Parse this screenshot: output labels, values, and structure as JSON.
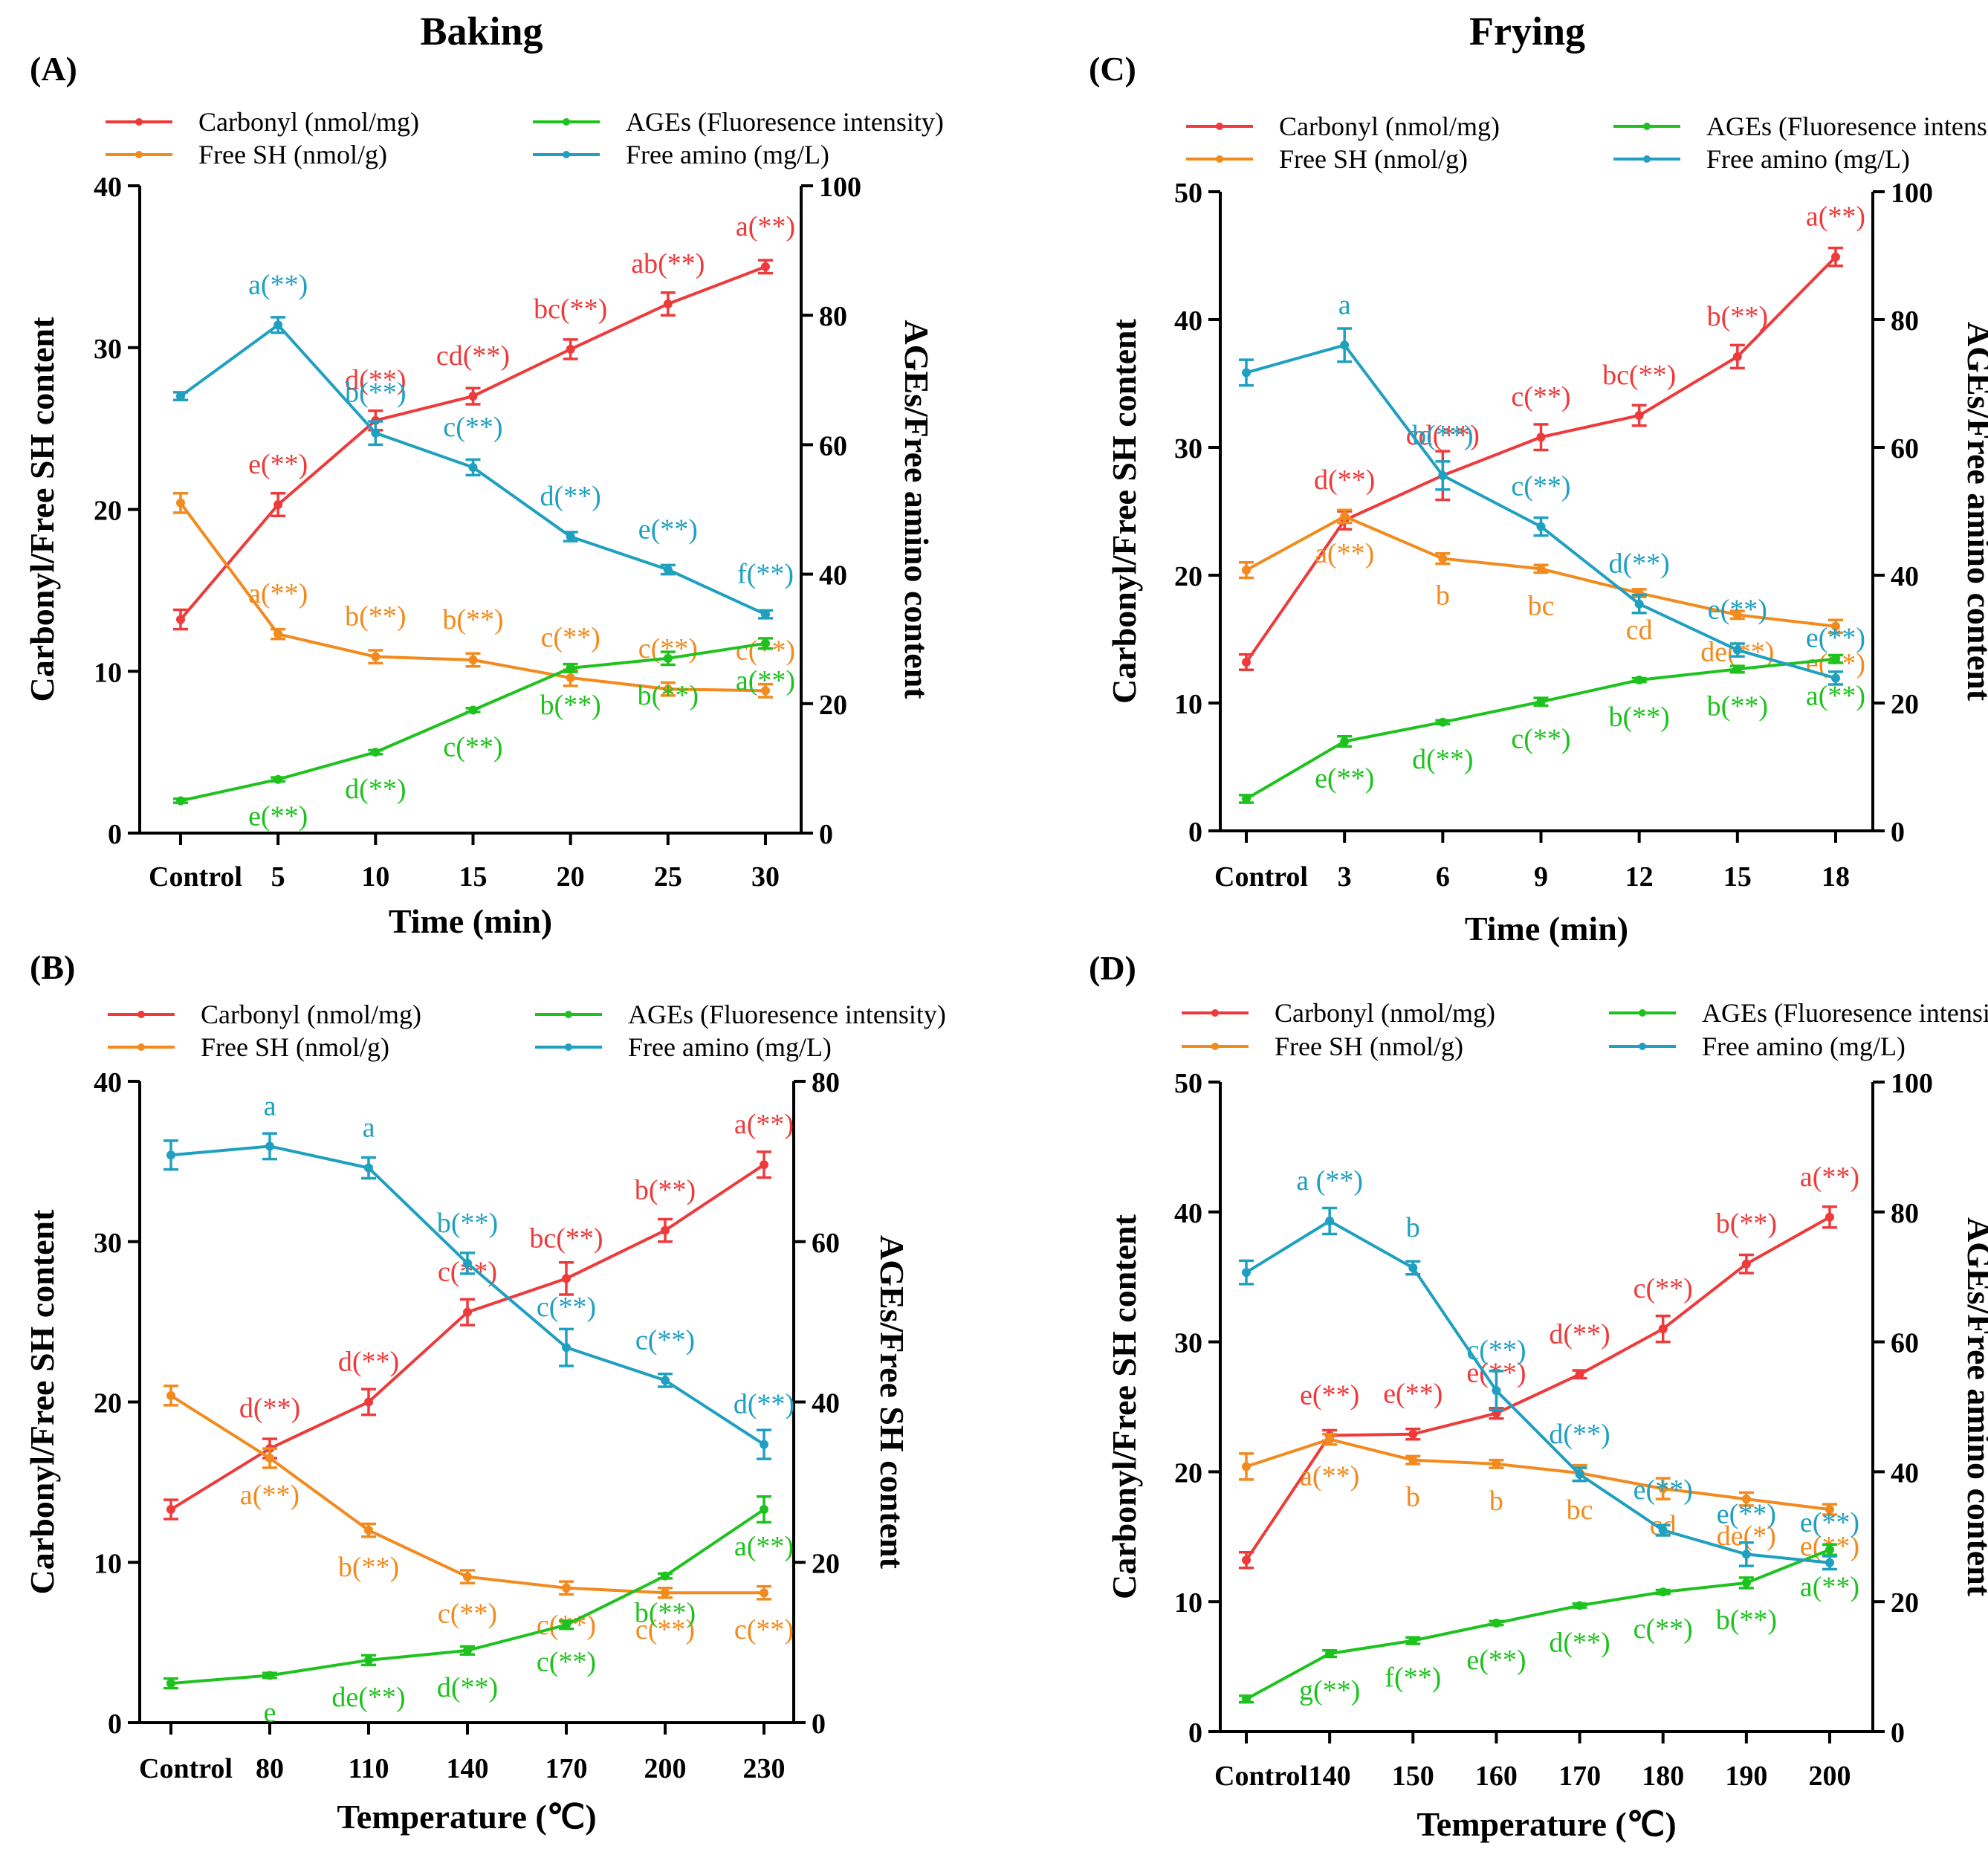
{
  "headers": {
    "left": "Baking",
    "right": "Frying"
  },
  "colors": {
    "carbonyl": "#ee3a3a",
    "free_sh": "#f28a1e",
    "ages": "#1ec21e",
    "free_amino": "#1fa0c0"
  },
  "chart_data": [
    {
      "id": "A",
      "panel_label": "(A)",
      "type": "line",
      "legend": [
        "Carbonyl (nmol/mg)",
        "Free SH (nmol/g)",
        "AGEs (Fluoresence intensity)",
        "Free amino (mg/L)"
      ],
      "categories": [
        "Control",
        "5",
        "10",
        "15",
        "20",
        "25",
        "30"
      ],
      "xlabel": "Time (min)",
      "ylabel_left": "Carbonyl/Free SH content",
      "ylabel_right": "AGEs/Free amino content",
      "left_axis": {
        "min": 0,
        "max": 40,
        "ticks": [
          "0",
          "10",
          "20",
          "30",
          "40"
        ]
      },
      "right_axis": {
        "min": 0,
        "max": 100,
        "ticks": [
          "0",
          "20",
          "40",
          "60",
          "80",
          "100"
        ]
      },
      "series": [
        {
          "name": "Carbonyl (nmol/mg)",
          "axis": "left",
          "color_key": "carbonyl",
          "values": [
            13.2,
            20.3,
            25.5,
            27.0,
            29.9,
            32.7,
            35.0
          ],
          "errors": [
            0.6,
            0.7,
            0.6,
            0.5,
            0.6,
            0.7,
            0.4
          ],
          "labels": [
            "",
            "e(**)",
            "d(**)",
            "cd(**)",
            "bc(**)",
            "ab(**)",
            "a(**)"
          ]
        },
        {
          "name": "Free SH (nmol/g)",
          "axis": "left",
          "color_key": "free_sh",
          "values": [
            20.4,
            12.3,
            10.9,
            10.7,
            9.6,
            8.9,
            8.8
          ],
          "errors": [
            0.6,
            0.3,
            0.4,
            0.4,
            0.5,
            0.4,
            0.4
          ],
          "labels": [
            "",
            "a(**)",
            "b(**)",
            "b(**)",
            "c(**)",
            "c(**)",
            "c(**)"
          ]
        },
        {
          "name": "AGEs (Fluoresence intensity)",
          "axis": "right",
          "color_key": "ages",
          "values": [
            5.0,
            8.3,
            12.5,
            19.0,
            25.5,
            27.0,
            29.3
          ],
          "errors": [
            0.3,
            0.3,
            0.3,
            0.3,
            0.6,
            1.0,
            0.8
          ],
          "labels": [
            "",
            "e(**)",
            "d(**)",
            "c(**)",
            "b(**)",
            "b(**)",
            "a(**)"
          ]
        },
        {
          "name": "Free amino (mg/L)",
          "axis": "right",
          "color_key": "free_amino",
          "values": [
            67.5,
            78.5,
            61.8,
            56.5,
            45.8,
            40.7,
            33.8
          ],
          "errors": [
            0.6,
            1.2,
            1.8,
            1.2,
            0.7,
            0.7,
            0.6
          ],
          "labels": [
            "",
            "a(**)",
            "b(**)",
            "c(**)",
            "d(**)",
            "e(**)",
            "f(**)"
          ]
        }
      ]
    },
    {
      "id": "B",
      "panel_label": "(B)",
      "type": "line",
      "legend": [
        "Carbonyl (nmol/mg)",
        "Free SH (nmol/g)",
        "AGEs (Fluoresence intensity)",
        "Free amino (mg/L)"
      ],
      "categories": [
        "Control",
        "80",
        "110",
        "140",
        "170",
        "200",
        "230"
      ],
      "xlabel": "Temperature (℃)",
      "ylabel_left": "Carbonyl/Free SH content",
      "ylabel_right": "AGEs/Free SH content",
      "left_axis": {
        "min": 0,
        "max": 40,
        "ticks": [
          "0",
          "10",
          "20",
          "30",
          "40"
        ]
      },
      "right_axis": {
        "min": 0,
        "max": 80,
        "ticks": [
          "0",
          "20",
          "40",
          "60",
          "80"
        ]
      },
      "series": [
        {
          "name": "Carbonyl (nmol/mg)",
          "axis": "left",
          "color_key": "carbonyl",
          "values": [
            13.3,
            17.1,
            20.0,
            25.6,
            27.7,
            30.7,
            34.8
          ],
          "errors": [
            0.6,
            0.6,
            0.8,
            0.8,
            1.0,
            0.7,
            0.8
          ],
          "labels": [
            "",
            "d(**)",
            "d(**)",
            "c(**)",
            "bc(**)",
            "b(**)",
            "a(**)"
          ]
        },
        {
          "name": "Free SH (nmol/g)",
          "axis": "left",
          "color_key": "free_sh",
          "values": [
            20.4,
            16.5,
            12.0,
            9.1,
            8.4,
            8.1,
            8.1
          ],
          "errors": [
            0.6,
            0.6,
            0.4,
            0.4,
            0.4,
            0.3,
            0.4
          ],
          "labels": [
            "",
            "a(**)",
            "b(**)",
            "c(**)",
            "c(**)",
            "c(**)",
            "c(**)"
          ]
        },
        {
          "name": "AGEs (Fluoresence intensity)",
          "axis": "right",
          "color_key": "ages",
          "values": [
            4.9,
            5.9,
            7.8,
            9.0,
            12.2,
            18.3,
            26.6
          ],
          "errors": [
            0.6,
            0.3,
            0.6,
            0.5,
            0.5,
            0.3,
            1.6
          ],
          "labels": [
            "",
            "e",
            "de(**)",
            "d(**)",
            "c(**)",
            "b(**)",
            "a(**)"
          ]
        },
        {
          "name": "Free amino (mg/L)",
          "axis": "right",
          "color_key": "free_amino",
          "values": [
            70.8,
            71.9,
            69.2,
            57.3,
            46.8,
            42.7,
            34.7
          ],
          "errors": [
            1.8,
            1.6,
            1.3,
            1.3,
            2.3,
            0.8,
            1.8
          ],
          "labels": [
            "",
            "a",
            "a",
            "b(**)",
            "c(**)",
            "c(**)",
            "d(**)"
          ]
        }
      ]
    },
    {
      "id": "C",
      "panel_label": "(C)",
      "type": "line",
      "legend": [
        "Carbonyl (nmol/mg)",
        "Free SH (nmol/g)",
        "AGEs (Fluoresence intensity)",
        "Free amino (mg/L)"
      ],
      "categories": [
        "Control",
        "3",
        "6",
        "9",
        "12",
        "15",
        "18"
      ],
      "xlabel": "Time (min)",
      "ylabel_left": "Carbonyl/Free SH content",
      "ylabel_right": "AGEs/Free amino content",
      "left_axis": {
        "min": 0,
        "max": 50,
        "ticks": [
          "0",
          "10",
          "20",
          "30",
          "40",
          "50"
        ]
      },
      "right_axis": {
        "min": 0,
        "max": 100,
        "ticks": [
          "0",
          "20",
          "40",
          "60",
          "80",
          "100"
        ]
      },
      "series": [
        {
          "name": "Carbonyl (nmol/mg)",
          "axis": "left",
          "color_key": "carbonyl",
          "values": [
            13.2,
            24.3,
            27.8,
            30.8,
            32.5,
            37.1,
            44.9
          ],
          "errors": [
            0.6,
            0.7,
            1.9,
            1.0,
            0.8,
            0.9,
            0.7
          ],
          "labels": [
            "",
            "d(**)",
            "cd(**)",
            "c(**)",
            "bc(**)",
            "b(**)",
            "a(**)"
          ]
        },
        {
          "name": "Free SH (nmol/g)",
          "axis": "left",
          "color_key": "free_sh",
          "values": [
            20.4,
            24.6,
            21.3,
            20.5,
            18.6,
            16.9,
            16.0
          ],
          "errors": [
            0.6,
            0.5,
            0.4,
            0.3,
            0.3,
            0.3,
            0.5
          ],
          "labels": [
            "",
            "a(**)",
            "b",
            "bc",
            "cd",
            "de(**)",
            "e(**)"
          ]
        },
        {
          "name": "AGEs (Fluoresence intensity)",
          "axis": "right",
          "color_key": "ages",
          "values": [
            5.0,
            14.0,
            17.0,
            20.2,
            23.6,
            25.3,
            26.9
          ],
          "errors": [
            0.6,
            0.8,
            0.3,
            0.6,
            0.3,
            0.5,
            0.6
          ],
          "labels": [
            "",
            "e(**)",
            "d(**)",
            "c(**)",
            "b(**)",
            "b(**)",
            "a(**)"
          ]
        },
        {
          "name": "Free amino (mg/L)",
          "axis": "right",
          "color_key": "free_amino",
          "values": [
            71.7,
            76.0,
            55.6,
            47.6,
            35.5,
            28.3,
            23.9
          ],
          "errors": [
            2.0,
            2.6,
            2.2,
            1.4,
            1.4,
            1.0,
            1.0
          ],
          "labels": [
            "",
            "a",
            "b(**)",
            "c(**)",
            "d(**)",
            "e(**)",
            "e(**)"
          ]
        }
      ]
    },
    {
      "id": "D",
      "panel_label": "(D)",
      "type": "line",
      "legend": [
        "Carbonyl (nmol/mg)",
        "Free SH (nmol/g)",
        "AGEs (Fluoresence intensity)",
        "Free amino (mg/L)"
      ],
      "categories": [
        "Control",
        "140",
        "150",
        "160",
        "170",
        "180",
        "190",
        "200"
      ],
      "xlabel": "Temperature (℃)",
      "ylabel_left": "Carbonyl/Free SH content",
      "ylabel_right": "AGEs/Free amino content",
      "left_axis": {
        "min": 0,
        "max": 50,
        "ticks": [
          "0",
          "10",
          "20",
          "30",
          "40",
          "50"
        ]
      },
      "right_axis": {
        "min": 0,
        "max": 100,
        "ticks": [
          "0",
          "20",
          "40",
          "60",
          "80",
          "100"
        ]
      },
      "series": [
        {
          "name": "Carbonyl (nmol/mg)",
          "axis": "left",
          "color_key": "carbonyl",
          "values": [
            13.2,
            22.8,
            22.9,
            24.5,
            27.5,
            31.0,
            36.0,
            39.6
          ],
          "errors": [
            0.6,
            0.4,
            0.4,
            0.4,
            0.3,
            1.0,
            0.7,
            0.8
          ],
          "labels": [
            "",
            "e(**)",
            "e(**)",
            "e(**)",
            "d(**)",
            "c(**)",
            "b(**)",
            "a(**)"
          ]
        },
        {
          "name": "Free SH (nmol/g)",
          "axis": "left",
          "color_key": "free_sh",
          "values": [
            20.4,
            22.5,
            20.9,
            20.6,
            19.9,
            18.7,
            17.9,
            17.1
          ],
          "errors": [
            1.0,
            0.4,
            0.3,
            0.3,
            0.6,
            0.8,
            0.5,
            0.4
          ],
          "labels": [
            "",
            "a(**)",
            "b",
            "b",
            "bc",
            "cd",
            "de(*)",
            "e(**)"
          ]
        },
        {
          "name": "AGEs (Fluoresence intensity)",
          "axis": "right",
          "color_key": "ages",
          "values": [
            5.0,
            12.0,
            14.0,
            16.7,
            19.4,
            21.5,
            22.9,
            28.0
          ],
          "errors": [
            0.5,
            0.5,
            0.5,
            0.3,
            0.3,
            0.3,
            0.8,
            0.8
          ],
          "labels": [
            "",
            "g(**)",
            "f(**)",
            "e(**)",
            "d(**)",
            "c(**)",
            "b(**)",
            "a(**)"
          ]
        },
        {
          "name": "Free amino (mg/L)",
          "axis": "right",
          "color_key": "free_amino",
          "values": [
            70.7,
            78.6,
            71.4,
            52.5,
            39.6,
            31.0,
            27.3,
            26.0
          ],
          "errors": [
            1.8,
            2.0,
            1.0,
            3.0,
            1.0,
            0.8,
            1.8,
            1.0
          ],
          "labels": [
            "",
            "a (**)",
            "b",
            "c(**)",
            "d(**)",
            "e(**)",
            "e(**)",
            "e(**)"
          ]
        }
      ]
    }
  ]
}
